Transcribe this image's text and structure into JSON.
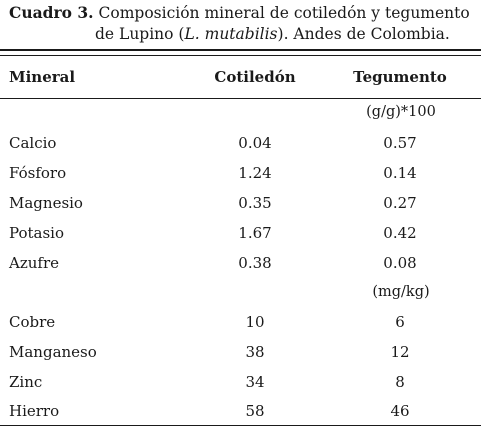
{
  "caption": {
    "label": "Cuadro 3.",
    "text_part1": "Composición mineral de cotiledón y tegumento",
    "text_part2": "de Lupino (",
    "species": "L. mutabilis",
    "text_part3": "). Andes de Colombia."
  },
  "table": {
    "headers": [
      "Mineral",
      "Cotiledón",
      "Tegumento"
    ],
    "unit_1": "(g/g)*100",
    "group_1": [
      {
        "mineral": "Calcio",
        "cotiledon": "0.04",
        "tegumento": "0.57"
      },
      {
        "mineral": "Fósforo",
        "cotiledon": "1.24",
        "tegumento": "0.14"
      },
      {
        "mineral": "Magnesio",
        "cotiledon": "0.35",
        "tegumento": "0.27"
      },
      {
        "mineral": "Potasio",
        "cotiledon": "1.67",
        "tegumento": "0.42"
      },
      {
        "mineral": "Azufre",
        "cotiledon": "0.38",
        "tegumento": "0.08"
      }
    ],
    "unit_2": "(mg/kg)",
    "group_2": [
      {
        "mineral": "Cobre",
        "cotiledon": "10",
        "tegumento": "6"
      },
      {
        "mineral": "Manganeso",
        "cotiledon": "38",
        "tegumento": "12"
      },
      {
        "mineral": "Zinc",
        "cotiledon": "34",
        "tegumento": "8"
      },
      {
        "mineral": "Hierro",
        "cotiledon": "58",
        "tegumento": "46"
      }
    ]
  }
}
